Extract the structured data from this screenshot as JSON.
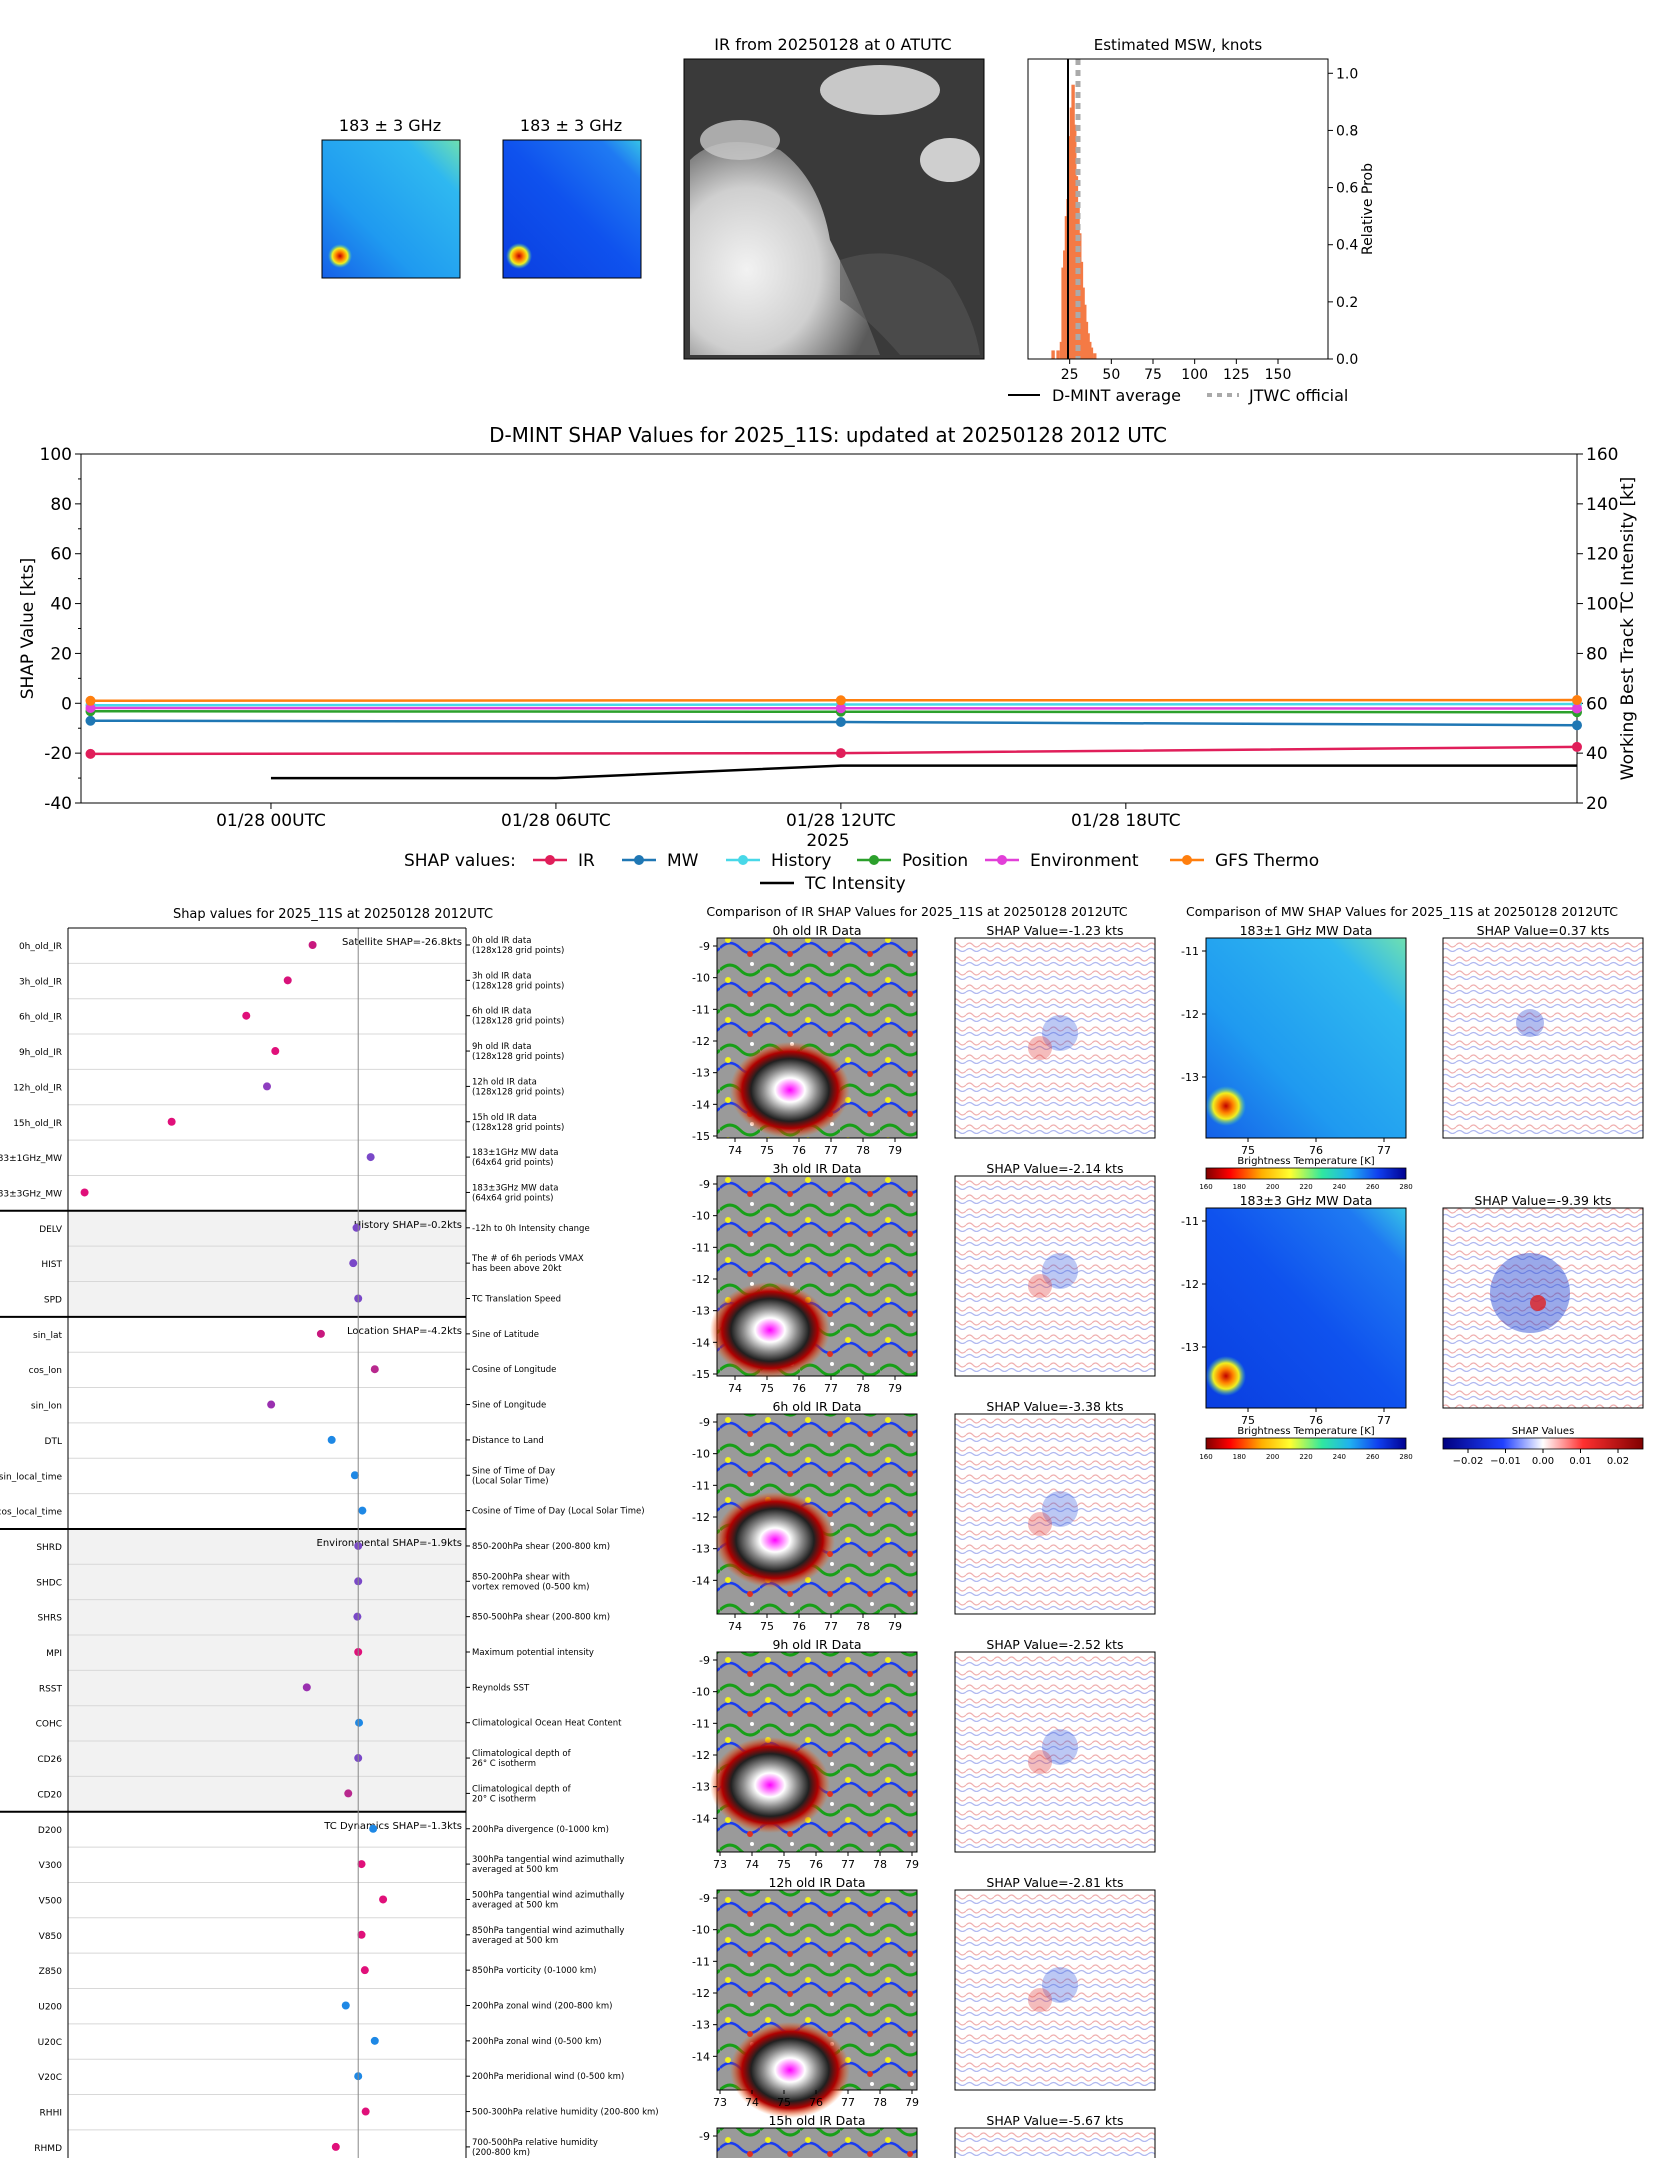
{
  "top_panels": {
    "mw1_title": "183 ± 3 GHz",
    "mw2_title": "183 ± 3 GHz",
    "ir_title": "IR from 20250128 at 0 ATUTC",
    "msw_title": "Estimated MSW, knots",
    "msw_ylabel": "Relative Prob",
    "msw_legend": [
      "D-MINT average",
      "JTWC official"
    ]
  },
  "chart_data": [
    {
      "type": "bar",
      "id": "msw",
      "title": "Estimated MSW, knots",
      "xlabel": "",
      "ylabel": "Relative Prob",
      "xlim": [
        0,
        180
      ],
      "ylim": [
        0,
        1.05
      ],
      "xticks": [
        25,
        50,
        75,
        100,
        125,
        150
      ],
      "yticks": [
        0.0,
        0.2,
        0.4,
        0.6,
        0.8,
        1.0
      ],
      "hist": {
        "x": [
          15,
          18,
          20,
          21,
          22,
          23,
          24,
          25,
          26,
          27,
          28,
          29,
          30,
          31,
          32,
          33,
          34,
          35,
          36,
          37,
          38,
          40
        ],
        "values": [
          0.03,
          0.03,
          0.06,
          0.32,
          0.38,
          0.5,
          0.56,
          0.78,
          0.88,
          0.96,
          0.82,
          0.64,
          0.54,
          0.44,
          0.34,
          0.25,
          0.19,
          0.13,
          0.09,
          0.06,
          0.04,
          0.02
        ]
      },
      "dmint_average": 24,
      "jtwc_official": 30,
      "series": [
        {
          "name": "D-MINT average"
        },
        {
          "name": "JTWC official"
        }
      ],
      "colors": {
        "bars": "#f47a45",
        "dmint": "#000000",
        "jtwc": "#aaaaaa"
      }
    },
    {
      "type": "line",
      "id": "shap_time",
      "title": "D-MINT SHAP Values for 2025_11S: updated at 20250128 2012 UTC",
      "xlabel": "2025",
      "ylabel": "SHAP Value [kts]",
      "y2label": "Working Best Track TC Intensity [kt]",
      "ylim": [
        -40,
        100
      ],
      "y2lim": [
        20,
        160
      ],
      "yticks": [
        -40,
        -20,
        0,
        20,
        40,
        60,
        80,
        100
      ],
      "y2ticks": [
        20,
        40,
        60,
        80,
        100,
        120,
        140,
        160
      ],
      "xlim_hours": [
        -4,
        27.5
      ],
      "xticks": [
        {
          "h": 0,
          "label": "01/28 00UTC"
        },
        {
          "h": 6,
          "label": "01/28 06UTC"
        },
        {
          "h": 12,
          "label": "01/28 12UTC"
        },
        {
          "h": 18,
          "label": "01/28 18UTC"
        }
      ],
      "legend_prefix": "SHAP values:",
      "series": [
        {
          "name": "IR",
          "color": "#e01e5a",
          "x": [
            -3.8,
            12,
            27.5
          ],
          "values": [
            -20.3,
            -20.0,
            -17.5
          ]
        },
        {
          "name": "MW",
          "color": "#1f77b4",
          "x": [
            -3.8,
            12,
            27.5
          ],
          "values": [
            -7.0,
            -7.5,
            -8.8
          ]
        },
        {
          "name": "History",
          "color": "#48d8e8",
          "x": [
            -3.8,
            12,
            27.5
          ],
          "values": [
            -0.8,
            -0.5,
            -0.3
          ]
        },
        {
          "name": "Position",
          "color": "#2ca02c",
          "x": [
            -3.8,
            12,
            27.5
          ],
          "values": [
            -3.2,
            -3.4,
            -3.6
          ]
        },
        {
          "name": "Environment",
          "color": "#e23fd8",
          "x": [
            -3.8,
            12,
            27.5
          ],
          "values": [
            -1.9,
            -2.0,
            -2.1
          ]
        },
        {
          "name": "GFS Thermo",
          "color": "#ff7f0e",
          "x": [
            -3.8,
            12,
            27.5
          ],
          "values": [
            1.0,
            1.2,
            1.3
          ]
        }
      ],
      "intensity": {
        "name": "TC Intensity",
        "color": "#000000",
        "x": [
          0,
          6,
          12,
          18,
          27.5
        ],
        "values": [
          30,
          30,
          35,
          35,
          35
        ]
      }
    },
    {
      "type": "scatter",
      "id": "feature_shap",
      "title": "Shap values for 2025_11S at 20250128 2012UTC",
      "xlim": [
        -3.5,
        1.3
      ],
      "groups": [
        {
          "title": "Satellite SHAP=-26.8kts",
          "shaded": false,
          "rows": [
            {
              "name": "0h_old_IR",
              "desc": "0h old IR data\n(128x128 grid points)",
              "value": -0.55,
              "color": "#c8187e"
            },
            {
              "name": "3h_old_IR",
              "desc": "3h old IR data\n(128x128 grid points)",
              "value": -0.85,
              "color": "#d8127a"
            },
            {
              "name": "6h_old_IR",
              "desc": "6h old IR data\n(128x128 grid points)",
              "value": -1.35,
              "color": "#e0107a"
            },
            {
              "name": "9h_old_IR",
              "desc": "9h old IR data\n(128x128 grid points)",
              "value": -1.0,
              "color": "#e0107a"
            },
            {
              "name": "12h_old_IR",
              "desc": "12h old IR data\n(128x128 grid points)",
              "value": -1.1,
              "color": "#8e3ec0"
            },
            {
              "name": "15h_old_IR",
              "desc": "15h old IR data\n(128x128 grid points)",
              "value": -2.25,
              "color": "#e0107a"
            },
            {
              "name": "183±1GHz_MW",
              "desc": "183±1GHz MW data\n(64x64 grid points)",
              "value": 0.15,
              "color": "#7a48c8"
            },
            {
              "name": "183±3GHz_MW",
              "desc": "183±3GHz MW data\n(64x64 grid points)",
              "value": -3.3,
              "color": "#e0107a"
            }
          ]
        },
        {
          "title": "History SHAP=-0.2kts",
          "shaded": true,
          "rows": [
            {
              "name": "DELV",
              "desc": "-12h to 0h Intensity change",
              "value": -0.02,
              "color": "#7a48c8"
            },
            {
              "name": "HIST",
              "desc": "The # of 6h periods VMAX\nhas been above 20kt",
              "value": -0.06,
              "color": "#7a48c8"
            },
            {
              "name": "SPD",
              "desc": "TC Translation Speed",
              "value": 0.0,
              "color": "#7a48c8"
            }
          ]
        },
        {
          "title": "Location SHAP=-4.2kts",
          "shaded": false,
          "rows": [
            {
              "name": "sin_lat",
              "desc": "Sine of Latitude",
              "value": -0.45,
              "color": "#c8187e"
            },
            {
              "name": "cos_lon",
              "desc": "Cosine of Longitude",
              "value": 0.2,
              "color": "#b8288e"
            },
            {
              "name": "sin_lon",
              "desc": "Sine of Longitude",
              "value": -1.05,
              "color": "#9a30b0"
            },
            {
              "name": "DTL",
              "desc": "Distance to Land",
              "value": -0.32,
              "color": "#1e88e5"
            },
            {
              "name": "sin_local_time",
              "desc": "Sine of Time of Day\n(Local Solar Time)",
              "value": -0.04,
              "color": "#1e88e5"
            },
            {
              "name": "cos_local_time",
              "desc": "Cosine of Time of Day (Local Solar Time)",
              "value": 0.05,
              "color": "#1e88e5"
            }
          ]
        },
        {
          "title": "Environmental SHAP=-1.9kts",
          "shaded": true,
          "rows": [
            {
              "name": "SHRD",
              "desc": "850-200hPa shear (200-800 km)",
              "value": 0.0,
              "color": "#7a48c8"
            },
            {
              "name": "SHDC",
              "desc": "850-200hPa shear with\nvortex removed (0-500 km)",
              "value": 0.0,
              "color": "#7a48c8"
            },
            {
              "name": "SHRS",
              "desc": "850-500hPa shear (200-800 km)",
              "value": -0.01,
              "color": "#7a48c8"
            },
            {
              "name": "MPI",
              "desc": "Maximum potential intensity",
              "value": 0.0,
              "color": "#e0107a"
            },
            {
              "name": "RSST",
              "desc": "Reynolds SST",
              "value": -0.62,
              "color": "#9a30b0"
            },
            {
              "name": "COHC",
              "desc": "Climatological Ocean Heat Content",
              "value": 0.01,
              "color": "#1e88e5"
            },
            {
              "name": "CD26",
              "desc": "Climatological depth of\n26° C isotherm",
              "value": 0.0,
              "color": "#7a48c8"
            },
            {
              "name": "CD20",
              "desc": "Climatological depth of\n20° C isotherm",
              "value": -0.12,
              "color": "#b8288e"
            }
          ]
        },
        {
          "title": "TC Dynamics SHAP=-1.3kts",
          "shaded": false,
          "rows": [
            {
              "name": "D200",
              "desc": "200hPa divergence (0-1000 km)",
              "value": 0.18,
              "color": "#1e88e5"
            },
            {
              "name": "V300",
              "desc": "300hPa tangential wind azimuthally\naveraged at 500 km",
              "value": 0.04,
              "color": "#e0107a"
            },
            {
              "name": "V500",
              "desc": "500hPa tangential wind azimuthally\naveraged at 500 km",
              "value": 0.3,
              "color": "#e0107a"
            },
            {
              "name": "V850",
              "desc": "850hPa tangential wind azimuthally\naveraged at 500 km",
              "value": 0.04,
              "color": "#e0107a"
            },
            {
              "name": "Z850",
              "desc": "850hPa vorticity (0-1000 km)",
              "value": 0.08,
              "color": "#e0107a"
            },
            {
              "name": "U200",
              "desc": "200hPa zonal wind (200-800 km)",
              "value": -0.15,
              "color": "#1e88e5"
            },
            {
              "name": "U20C",
              "desc": "200hPa zonal wind (0-500 km)",
              "value": 0.2,
              "color": "#1e88e5"
            },
            {
              "name": "V20C",
              "desc": "200hPa meridional wind (0-500 km)",
              "value": 0.0,
              "color": "#1e88e5"
            },
            {
              "name": "RHHI",
              "desc": "500-300hPa relative humidity (200-800 km)",
              "value": 0.09,
              "color": "#e0107a"
            },
            {
              "name": "RHMD",
              "desc": "700-500hPa relative humidity\n(200-800 km)",
              "value": -0.27,
              "color": "#e0107a"
            }
          ]
        }
      ]
    }
  ],
  "ir_comparison": {
    "title": "Comparison of IR SHAP Values for 2025_11S at 20250128 2012UTC",
    "panels": [
      {
        "label": "0h old IR Data",
        "shap": "SHAP Value=-1.23 kts",
        "yticks": [
          "-9",
          "-10",
          "-11",
          "-12",
          "-13",
          "-14",
          "-15"
        ],
        "xticks": [
          "74",
          "75",
          "76",
          "77",
          "78",
          "79"
        ]
      },
      {
        "label": "3h old IR Data",
        "shap": "SHAP Value=-2.14 kts",
        "yticks": [
          "-9",
          "-10",
          "-11",
          "-12",
          "-13",
          "-14",
          "-15"
        ],
        "xticks": [
          "74",
          "75",
          "76",
          "77",
          "78",
          "79"
        ]
      },
      {
        "label": "6h old IR Data",
        "shap": "SHAP Value=-3.38 kts",
        "yticks": [
          "-9",
          "-10",
          "-11",
          "-12",
          "-13",
          "-14"
        ],
        "xticks": [
          "74",
          "75",
          "76",
          "77",
          "78",
          "79"
        ]
      },
      {
        "label": "9h old IR Data",
        "shap": "SHAP Value=-2.52 kts",
        "yticks": [
          "-9",
          "-10",
          "-11",
          "-12",
          "-13",
          "-14"
        ],
        "xticks": [
          "73",
          "74",
          "75",
          "76",
          "77",
          "78",
          "79"
        ]
      },
      {
        "label": "12h old IR Data",
        "shap": "SHAP Value=-2.81 kts",
        "yticks": [
          "-9",
          "-10",
          "-11",
          "-12",
          "-13",
          "-14"
        ],
        "xticks": [
          "73",
          "74",
          "75",
          "76",
          "77",
          "78",
          "79"
        ]
      },
      {
        "label": "15h old IR Data",
        "shap": "SHAP Value=-5.67 kts",
        "yticks": [
          "-9"
        ],
        "xticks": []
      }
    ]
  },
  "mw_comparison": {
    "title": "Comparison of MW SHAP Values for 2025_11S at 20250128 2012UTC",
    "panels": [
      {
        "label": "183±1 GHz MW Data",
        "shap": "SHAP Value=0.37 kts"
      },
      {
        "label": "183±3 GHz MW Data",
        "shap": "SHAP Value=-9.39 kts"
      }
    ],
    "yticks": [
      "-11",
      "-12",
      "-13"
    ],
    "xticks": [
      "75",
      "76",
      "77"
    ],
    "colorbar_label": "Brightness Temperature [K]",
    "colorbar_ticks": [
      "160",
      "180",
      "200",
      "220",
      "240",
      "260",
      "280"
    ],
    "shap_colorbar_label": "SHAP Values",
    "shap_colorbar_ticks": [
      "−0.02",
      "−0.01",
      "0.00",
      "0.01",
      "0.02"
    ]
  }
}
